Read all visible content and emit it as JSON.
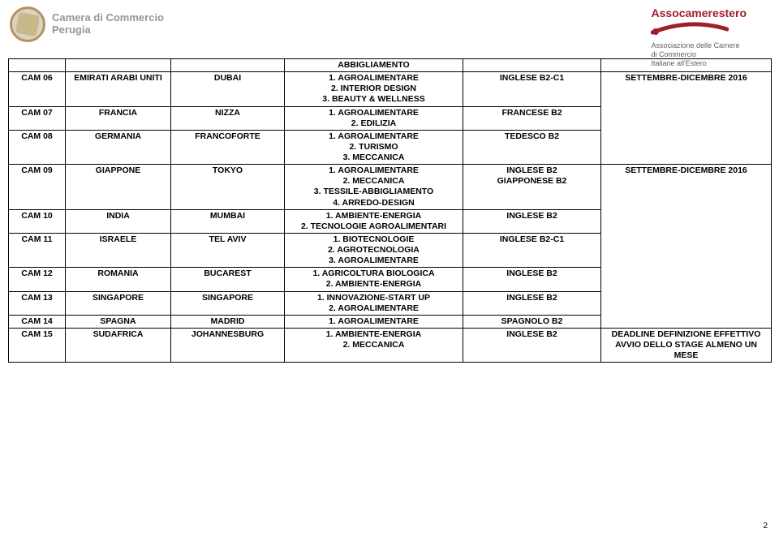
{
  "header": {
    "left": {
      "line1": "Camera di Commercio",
      "line2": "Perugia"
    },
    "right": {
      "title": "Assocamerestero",
      "sub1": "Associazione delle Camere",
      "sub2": "di Commercio",
      "sub3": "Italiane all'Estero"
    }
  },
  "preRow": {
    "desc": "ABBIGLIAMENTO"
  },
  "rows": [
    {
      "code": "CAM 06",
      "country": "EMIRATI ARABI UNITI",
      "city": "DUBAI",
      "desc": "1. AGROALIMENTARE\n2. INTERIOR DESIGN\n3. BEAUTY & WELLNESS",
      "lang": "INGLESE B2-C1",
      "period": "SETTEMBRE-DICEMBRE 2016",
      "periodRowspan": 3
    },
    {
      "code": "CAM 07",
      "country": "FRANCIA",
      "city": "NIZZA",
      "desc": "1. AGROALIMENTARE\n2. EDILIZIA",
      "lang": "FRANCESE B2"
    },
    {
      "code": "CAM 08",
      "country": "GERMANIA",
      "city": "FRANCOFORTE",
      "desc": "1. AGROALIMENTARE\n2. TURISMO\n3. MECCANICA",
      "lang": "TEDESCO B2"
    },
    {
      "code": "CAM 09",
      "country": "GIAPPONE",
      "city": "TOKYO",
      "desc": "1. AGROALIMENTARE\n2. MECCANICA\n3. TESSILE-ABBIGLIAMENTO\n4. ARREDO-DESIGN",
      "lang": "INGLESE B2\nGIAPPONESE B2",
      "period": "SETTEMBRE-DICEMBRE 2016",
      "periodRowspan": 6
    },
    {
      "code": "CAM 10",
      "country": "INDIA",
      "city": "MUMBAI",
      "desc": "1. AMBIENTE-ENERGIA\n2. TECNOLOGIE AGROALIMENTARI",
      "lang": "INGLESE B2"
    },
    {
      "code": "CAM 11",
      "country": "ISRAELE",
      "city": "TEL AVIV",
      "desc": "1. BIOTECNOLOGIE\n2. AGROTECNOLOGIA\n3. AGROALIMENTARE",
      "lang": "INGLESE B2-C1"
    },
    {
      "code": "CAM 12",
      "country": "ROMANIA",
      "city": "BUCAREST",
      "desc": "1. AGRICOLTURA BIOLOGICA\n2. AMBIENTE-ENERGIA",
      "lang": "INGLESE B2"
    },
    {
      "code": "CAM 13",
      "country": "SINGAPORE",
      "city": "SINGAPORE",
      "desc": "1. INNOVAZIONE-START UP\n2. AGROALIMENTARE",
      "lang": "INGLESE B2"
    },
    {
      "code": "CAM 14",
      "country": "SPAGNA",
      "city": "MADRID",
      "desc": "1. AGROALIMENTARE",
      "lang": "SPAGNOLO B2"
    },
    {
      "code": "CAM 15",
      "country": "SUDAFRICA",
      "city": "JOHANNESBURG",
      "desc": "1. AMBIENTE-ENERGIA\n2. MECCANICA",
      "lang": "INGLESE B2",
      "period": "DEADLINE DEFINIZIONE EFFETTIVO AVVIO DELLO STAGE ALMENO UN MESE",
      "periodRowspan": 1
    }
  ],
  "pageNumber": "2",
  "colors": {
    "brandRed": "#a01e28",
    "grayText": "#9a9690",
    "border": "#000000"
  }
}
